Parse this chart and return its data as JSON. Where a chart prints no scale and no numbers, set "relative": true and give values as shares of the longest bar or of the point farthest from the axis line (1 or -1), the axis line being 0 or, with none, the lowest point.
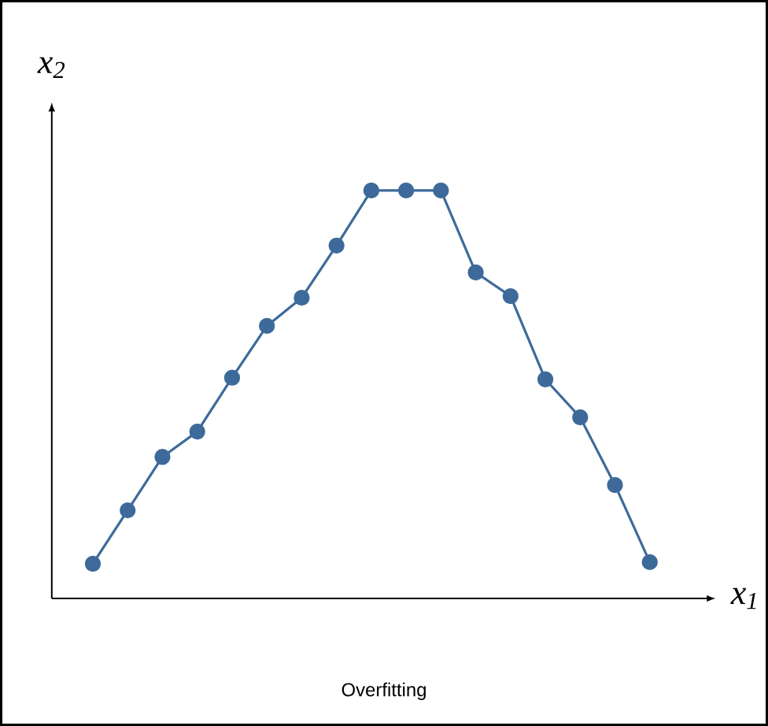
{
  "chart_data": {
    "type": "line",
    "relative": true,
    "xlabel": "x$_{1}$",
    "ylabel": "x$_{2}$",
    "annotations": [
      "Overfitting"
    ],
    "tick_labels": false,
    "marker": "circle",
    "line_style": "solid",
    "categories": [
      null,
      null,
      null,
      null,
      null,
      null,
      null,
      null,
      null,
      null,
      null,
      null,
      null,
      null,
      null,
      null,
      null
    ],
    "series": [
      {
        "color": "#3d6a9a",
        "values": [
          0.085,
          0.216,
          0.347,
          0.409,
          0.541,
          0.668,
          0.737,
          0.865,
          1,
          1,
          1,
          0.799,
          0.741,
          0.537,
          0.444,
          0.278,
          0.089
        ]
      }
    ]
  }
}
